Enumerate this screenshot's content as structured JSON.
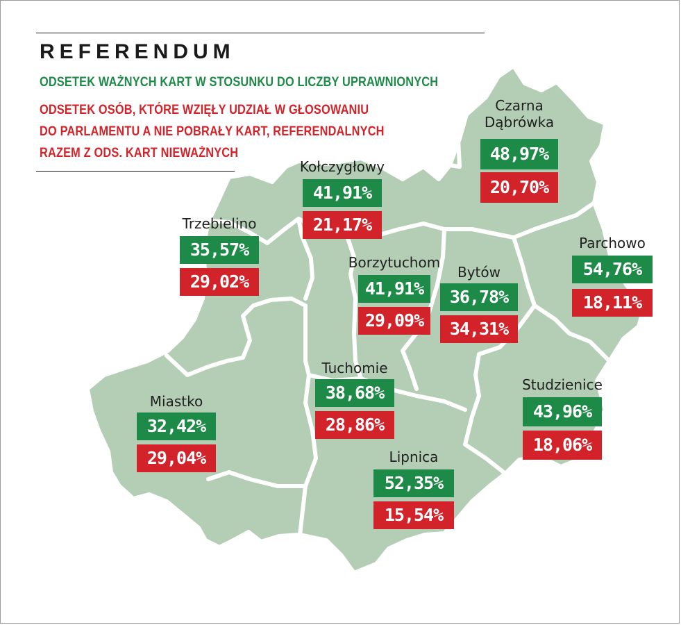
{
  "title": "REFERENDUM",
  "legend": {
    "green": "ODSETEK WAŻNYCH KART W STOSUNKU DO LICZBY UPRAWNIONYCH",
    "red_lines": [
      "ODSETEK OSÓB, KTÓRE WZIĘŁY UDZIAŁ W GŁOSOWANIU",
      "DO PARLAMENTU A NIE POBRAŁY KART, REFERENDALNYCH",
      "RAZEM Z ODS. KART NIEWAŻNYCH"
    ]
  },
  "colors": {
    "green": "#1e8a47",
    "red": "#d2232a",
    "map_fill": "#b3ceb5"
  },
  "gminas": [
    {
      "name": "Czarna Dąbrówka",
      "name_lines": [
        "Czarna",
        "Dąbrówka"
      ],
      "valid_cards": "48,97%",
      "non_participation": "20,70%"
    },
    {
      "name": "Kołczygłowy",
      "name_lines": [
        "Kołczygłowy"
      ],
      "valid_cards": "41,91%",
      "non_participation": "21,17%"
    },
    {
      "name": "Trzebielino",
      "name_lines": [
        "Trzebielino"
      ],
      "valid_cards": "35,57%",
      "non_participation": "29,02%"
    },
    {
      "name": "Parchowo",
      "name_lines": [
        "Parchowo"
      ],
      "valid_cards": "54,76%",
      "non_participation": "18,11%"
    },
    {
      "name": "Borzytuchom",
      "name_lines": [
        "Borzytuchom"
      ],
      "valid_cards": "41,91%",
      "non_participation": "29,09%"
    },
    {
      "name": "Bytów",
      "name_lines": [
        "Bytów"
      ],
      "valid_cards": "36,78%",
      "non_participation": "34,31%"
    },
    {
      "name": "Tuchomie",
      "name_lines": [
        "Tuchomie"
      ],
      "valid_cards": "38,68%",
      "non_participation": "28,86%"
    },
    {
      "name": "Studzienice",
      "name_lines": [
        "Studzienice"
      ],
      "valid_cards": "43,96%",
      "non_participation": "18,06%"
    },
    {
      "name": "Miastko",
      "name_lines": [
        "Miastko"
      ],
      "valid_cards": "32,42%",
      "non_participation": "29,04%"
    },
    {
      "name": "Lipnica",
      "name_lines": [
        "Lipnica"
      ],
      "valid_cards": "52,35%",
      "non_participation": "15,54%"
    }
  ]
}
